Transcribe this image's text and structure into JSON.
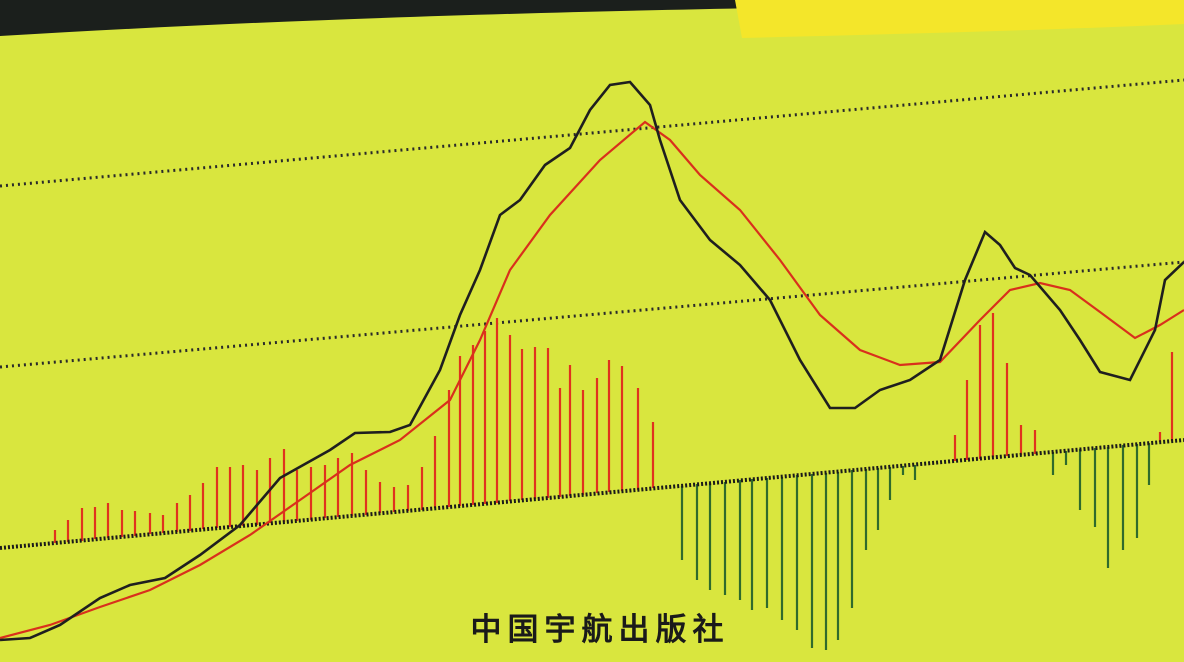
{
  "publisher": "中国宇航出版社"
}
